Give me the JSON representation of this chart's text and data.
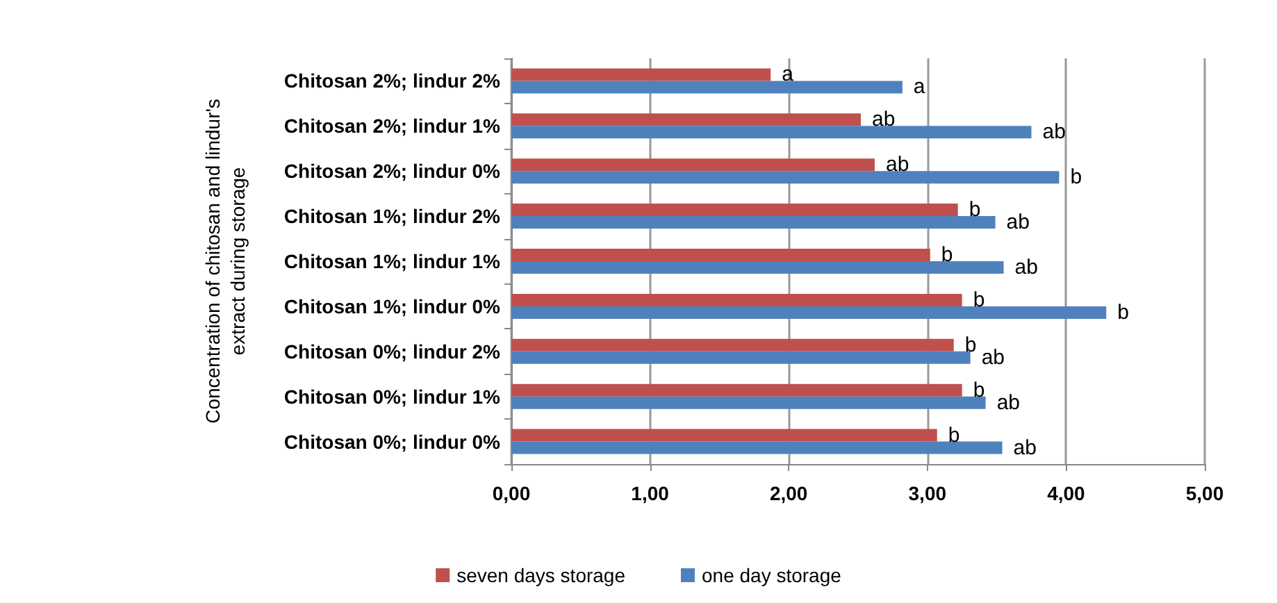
{
  "chart_data": {
    "type": "bar",
    "orientation": "horizontal",
    "ylabel": "Concentration of chitosan and lindur's extract during storage",
    "categories": [
      "Chitosan 2%; lindur 2%",
      "Chitosan 2%; lindur 1%",
      "Chitosan 2%; lindur 0%",
      "Chitosan 1%; lindur 2%",
      "Chitosan 1%; lindur 1%",
      "Chitosan 1%; lindur 0%",
      "Chitosan 0%; lindur 2%",
      "Chitosan 0%; lindur 1%",
      "Chitosan 0%; lindur 0%"
    ],
    "series": [
      {
        "name": "seven days storage",
        "color": "#c0504d",
        "values": [
          1.87,
          2.52,
          2.62,
          3.22,
          3.02,
          3.25,
          3.19,
          3.25,
          3.07
        ],
        "value_labels": [
          "a",
          "ab",
          "ab",
          "b",
          "b",
          "b",
          "b",
          "b",
          "b"
        ]
      },
      {
        "name": "one day storage",
        "color": "#4f81bd",
        "values": [
          2.82,
          3.75,
          3.95,
          3.49,
          3.55,
          4.29,
          3.31,
          3.42,
          3.54
        ],
        "value_labels": [
          "a",
          "ab",
          "b",
          "ab",
          "ab",
          "b",
          "ab",
          "ab",
          "ab"
        ]
      }
    ],
    "xlim": [
      0,
      5
    ],
    "xticks": [
      {
        "value": 0,
        "label": "0,00"
      },
      {
        "value": 1,
        "label": "1,00"
      },
      {
        "value": 2,
        "label": "2,00"
      },
      {
        "value": 3,
        "label": "3,00"
      },
      {
        "value": 4,
        "label": "4,00"
      },
      {
        "value": 5,
        "label": "5,00"
      }
    ],
    "grid": "x",
    "legend": "bottom"
  }
}
